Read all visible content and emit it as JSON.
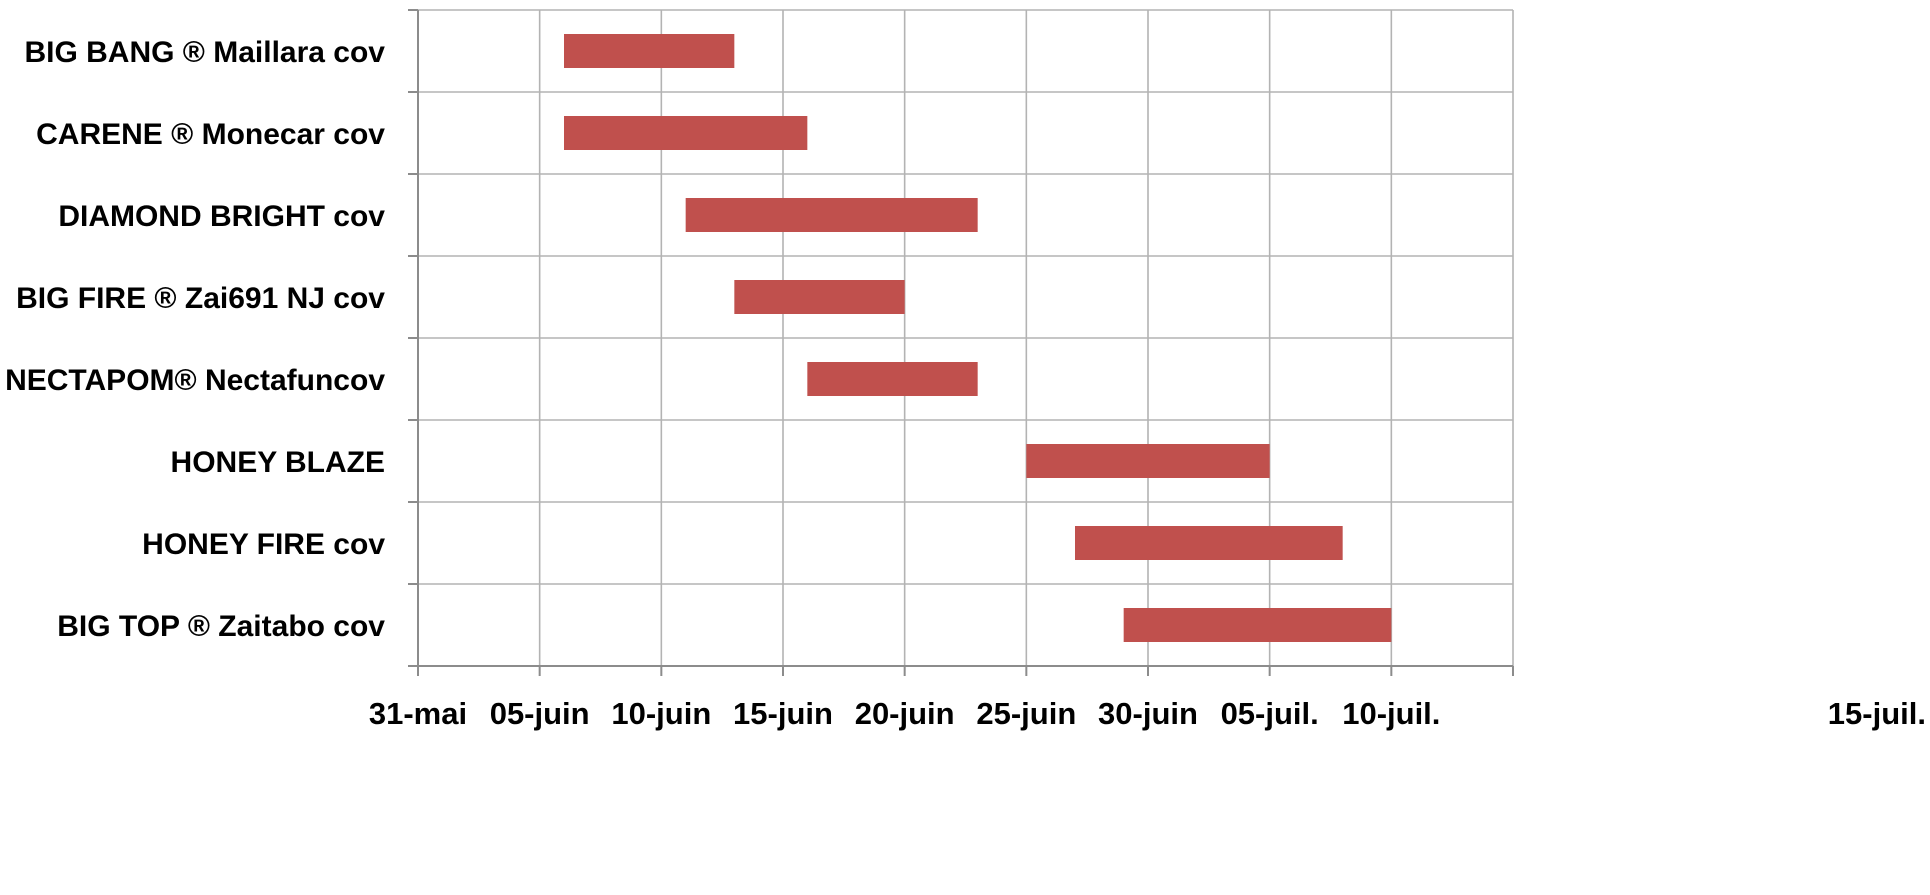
{
  "chart_data": {
    "type": "bar",
    "orientation": "horizontal-floating",
    "title": "",
    "xlabel": "",
    "ylabel": "",
    "x_axis_type": "date",
    "xlim": [
      "2024-05-31",
      "2024-07-15"
    ],
    "x_ticks": [
      {
        "date": "2024-05-31",
        "label": "31-mai"
      },
      {
        "date": "2024-06-05",
        "label": "05-juin"
      },
      {
        "date": "2024-06-10",
        "label": "10-juin"
      },
      {
        "date": "2024-06-15",
        "label": "15-juin"
      },
      {
        "date": "2024-06-20",
        "label": "20-juin"
      },
      {
        "date": "2024-06-25",
        "label": "25-juin"
      },
      {
        "date": "2024-06-30",
        "label": "30-juin"
      },
      {
        "date": "2024-07-05",
        "label": "05-juil."
      },
      {
        "date": "2024-07-10",
        "label": "10-juil."
      },
      {
        "date": "2024-07-15",
        "label": "15-juil."
      }
    ],
    "categories": [
      "BIG BANG ® Maillara cov",
      "CARENE ® Monecar cov",
      "DIAMOND BRIGHT cov",
      "BIG FIRE ® Zai691 NJ cov",
      "NECTAPOM® Nectafuncov",
      "HONEY BLAZE",
      "HONEY FIRE cov",
      "BIG TOP ® Zaitabo cov"
    ],
    "ranges": [
      {
        "start": "2024-06-06",
        "end": "2024-06-13"
      },
      {
        "start": "2024-06-06",
        "end": "2024-06-16"
      },
      {
        "start": "2024-06-11",
        "end": "2024-06-23"
      },
      {
        "start": "2024-06-13",
        "end": "2024-06-20"
      },
      {
        "start": "2024-06-16",
        "end": "2024-06-23"
      },
      {
        "start": "2024-06-25",
        "end": "2024-07-05"
      },
      {
        "start": "2024-06-27",
        "end": "2024-07-08"
      },
      {
        "start": "2024-06-29",
        "end": "2024-07-10"
      }
    ],
    "bar_color": "#c0504d",
    "grid": true,
    "grid_color": "#b3b3b3",
    "axis_color": "#8c8c8c",
    "legend": "none"
  }
}
